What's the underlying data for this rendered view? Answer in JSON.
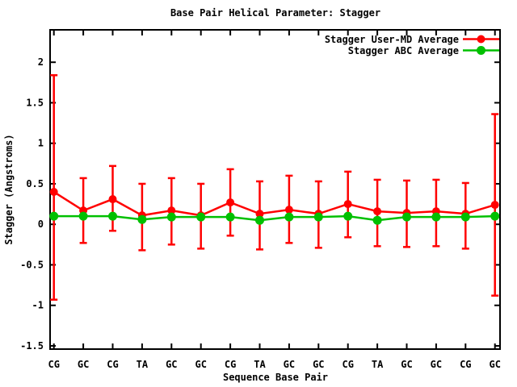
{
  "chart_data": {
    "type": "line",
    "title": "Base Pair Helical Parameter: Stagger",
    "xlabel": "Sequence Base Pair",
    "ylabel": "Stagger (Angstroms)",
    "categories": [
      "CG",
      "GC",
      "CG",
      "TA",
      "GC",
      "GC",
      "CG",
      "TA",
      "GC",
      "GC",
      "CG",
      "TA",
      "GC",
      "GC",
      "CG",
      "GC"
    ],
    "yticks": [
      2,
      1.5,
      1,
      0.5,
      0,
      -0.5,
      -1,
      -1.5
    ],
    "ylim": [
      -1.54,
      2.4
    ],
    "grid": false,
    "legend_position": "top-right-inside",
    "series": [
      {
        "name": "Stagger User-MD Average",
        "color": "#ff0000",
        "marker": "circle",
        "values": [
          0.4,
          0.17,
          0.31,
          0.11,
          0.17,
          0.11,
          0.27,
          0.13,
          0.18,
          0.13,
          0.25,
          0.16,
          0.14,
          0.16,
          0.13,
          0.24
        ],
        "err_high": [
          1.84,
          0.57,
          0.72,
          0.5,
          0.57,
          0.5,
          0.68,
          0.53,
          0.6,
          0.53,
          0.65,
          0.55,
          0.54,
          0.55,
          0.51,
          1.36
        ],
        "err_low": [
          -0.93,
          -0.23,
          -0.08,
          -0.32,
          -0.25,
          -0.3,
          -0.14,
          -0.31,
          -0.23,
          -0.29,
          -0.16,
          -0.27,
          -0.28,
          -0.27,
          -0.3,
          -0.88
        ]
      },
      {
        "name": "Stagger ABC Average",
        "color": "#00c000",
        "marker": "circle",
        "values": [
          0.1,
          0.1,
          0.1,
          0.06,
          0.09,
          0.09,
          0.09,
          0.05,
          0.09,
          0.09,
          0.1,
          0.05,
          0.09,
          0.09,
          0.09,
          0.1
        ]
      }
    ],
    "colors": {
      "frame": "#000000",
      "background": "#ffffff"
    }
  }
}
